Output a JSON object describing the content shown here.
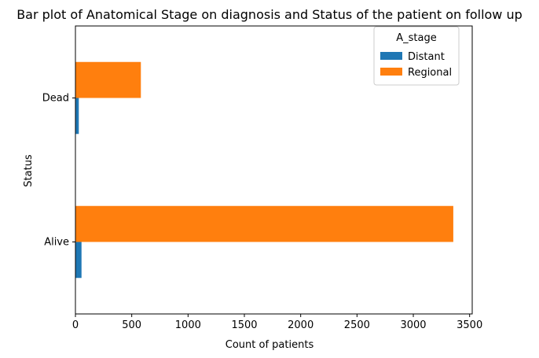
{
  "chart_data": {
    "type": "bar",
    "orientation": "horizontal",
    "title": "Bar plot of Anatomical Stage on diagnosis and Status of the patient on follow up",
    "xlabel": "Count of patients",
    "ylabel": "Status",
    "categories": [
      "Alive",
      "Dead"
    ],
    "series": [
      {
        "name": "Distant",
        "values": [
          54,
          30
        ],
        "color": "#1f77b4"
      },
      {
        "name": "Regional",
        "values": [
          3355,
          581
        ],
        "color": "#ff7f0e"
      }
    ],
    "xlim": [
      0,
      3523
    ],
    "xticks": [
      0,
      500,
      1000,
      1500,
      2000,
      2500,
      3000,
      3500
    ],
    "legend": {
      "title": "A_stage",
      "position": "top-right"
    },
    "grid": false
  }
}
